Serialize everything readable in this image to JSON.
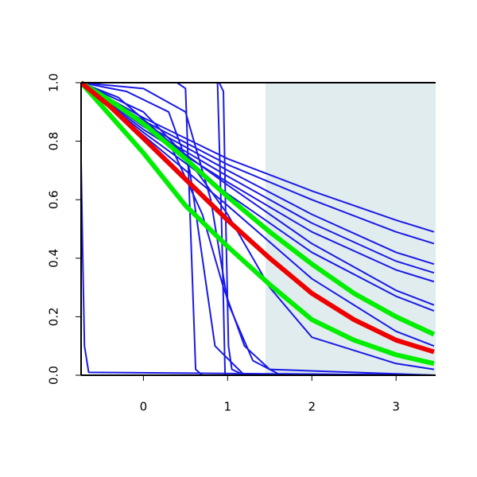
{
  "chart_data": {
    "type": "line",
    "xlim": [
      -0.74,
      3.47
    ],
    "ylim": [
      0,
      1
    ],
    "xticks": [
      0,
      1,
      2,
      3
    ],
    "yticks": [
      {
        "value": 0,
        "label": "0.0"
      },
      {
        "value": 0.2,
        "label": "0.2"
      },
      {
        "value": 0.4,
        "label": "0.4"
      },
      {
        "value": 0.6,
        "label": "0.6"
      },
      {
        "value": 0.8,
        "label": "0.8"
      },
      {
        "value": 1,
        "label": "1.0"
      }
    ],
    "shaded_xrange": [
      1.45,
      3.47
    ],
    "shade_color": "#e0eced",
    "series": [
      {
        "color": "#1a1ae6",
        "x": [
          -0.74,
          0,
          1,
          2,
          3,
          3.45
        ],
        "values": [
          1,
          0.88,
          0.74,
          0.63,
          0.53,
          0.49
        ]
      },
      {
        "color": "#1a1ae6",
        "x": [
          -0.74,
          0,
          1,
          2,
          3,
          3.45
        ],
        "values": [
          1,
          0.87,
          0.72,
          0.6,
          0.49,
          0.45
        ]
      },
      {
        "color": "#1a1ae6",
        "x": [
          -0.74,
          0,
          1,
          2,
          3,
          3.45
        ],
        "values": [
          1,
          0.86,
          0.7,
          0.55,
          0.42,
          0.38
        ]
      },
      {
        "color": "#1a1ae6",
        "x": [
          -0.74,
          0,
          1,
          2,
          3,
          3.45
        ],
        "values": [
          1,
          0.85,
          0.68,
          0.52,
          0.39,
          0.35
        ]
      },
      {
        "color": "#1a1ae6",
        "x": [
          -0.74,
          0,
          1,
          2,
          3,
          3.45
        ],
        "values": [
          1,
          0.84,
          0.66,
          0.49,
          0.36,
          0.32
        ]
      },
      {
        "color": "#1a1ae6",
        "x": [
          -0.74,
          0,
          1,
          2,
          3,
          3.45
        ],
        "values": [
          1,
          0.86,
          0.65,
          0.45,
          0.29,
          0.24
        ]
      },
      {
        "color": "#1a1ae6",
        "x": [
          -0.74,
          0,
          1,
          2,
          3,
          3.45
        ],
        "values": [
          1,
          0.83,
          0.62,
          0.42,
          0.27,
          0.22
        ]
      },
      {
        "color": "#1a1ae6",
        "x": [
          -0.74,
          0,
          1,
          2,
          3,
          3.45
        ],
        "values": [
          1,
          0.82,
          0.58,
          0.33,
          0.15,
          0.1
        ]
      },
      {
        "color": "#1a1ae6",
        "x": [
          -0.74,
          0,
          0.5,
          1,
          1.5,
          2,
          3,
          3.45
        ],
        "values": [
          1,
          0.9,
          0.75,
          0.55,
          0.3,
          0.13,
          0.04,
          0.02
        ]
      },
      {
        "color": "#1a1ae6",
        "x": [
          -0.74,
          0,
          0.5,
          0.8,
          1,
          1.3,
          1.6,
          3.45
        ],
        "values": [
          1,
          0.98,
          0.9,
          0.6,
          0.25,
          0.05,
          0.005,
          0
        ]
      },
      {
        "color": "#1a1ae6",
        "x": [
          -0.74,
          0.4,
          0.5,
          0.56,
          0.62,
          0.7,
          3.45
        ],
        "values": [
          1,
          1,
          0.98,
          0.5,
          0.02,
          0,
          0
        ]
      },
      {
        "color": "#1a1ae6",
        "x": [
          -0.74,
          0.88,
          0.93,
          0.97,
          3.45
        ],
        "values": [
          1,
          1,
          0.5,
          0,
          0
        ]
      },
      {
        "color": "#1a1ae6",
        "x": [
          -0.74,
          0.9,
          0.95,
          0.98,
          1.01,
          1.05,
          1.2,
          3.45
        ],
        "values": [
          1,
          1,
          0.97,
          0.5,
          0.1,
          0.02,
          0,
          0
        ]
      },
      {
        "color": "#1a1ae6",
        "x": [
          -0.74,
          -0.72,
          -0.7,
          -0.65,
          3.45
        ],
        "values": [
          0.73,
          0.4,
          0.1,
          0.01,
          0
        ]
      },
      {
        "color": "#1a1ae6",
        "x": [
          -0.74,
          -0.3,
          0.3,
          0.7,
          0.95,
          1.2,
          1.5,
          3.45
        ],
        "values": [
          1,
          0.95,
          0.8,
          0.55,
          0.3,
          0.1,
          0.02,
          0
        ]
      },
      {
        "color": "#1a1ae6",
        "x": [
          -0.74,
          -0.2,
          0.3,
          0.55,
          0.7,
          0.85,
          1.2,
          3.45
        ],
        "values": [
          1,
          0.97,
          0.9,
          0.7,
          0.4,
          0.1,
          0,
          0
        ]
      },
      {
        "color": "#00ee00",
        "x": [
          -0.74,
          -0.4,
          0,
          0.5,
          1,
          1.5,
          2,
          2.5,
          3,
          3.45
        ],
        "values": [
          1,
          0.94,
          0.86,
          0.74,
          0.61,
          0.49,
          0.38,
          0.28,
          0.2,
          0.14
        ]
      },
      {
        "color": "#00ee00",
        "x": [
          -0.74,
          -0.4,
          0,
          0.5,
          1,
          1.5,
          2,
          2.5,
          3,
          3.45
        ],
        "values": [
          1,
          0.89,
          0.76,
          0.58,
          0.44,
          0.31,
          0.19,
          0.12,
          0.07,
          0.04
        ]
      },
      {
        "color": "#ee0000",
        "x": [
          -0.74,
          -0.4,
          0,
          0.5,
          1,
          1.5,
          2,
          2.5,
          3,
          3.45
        ],
        "values": [
          1,
          0.92,
          0.81,
          0.67,
          0.53,
          0.4,
          0.28,
          0.19,
          0.12,
          0.08
        ]
      }
    ]
  }
}
